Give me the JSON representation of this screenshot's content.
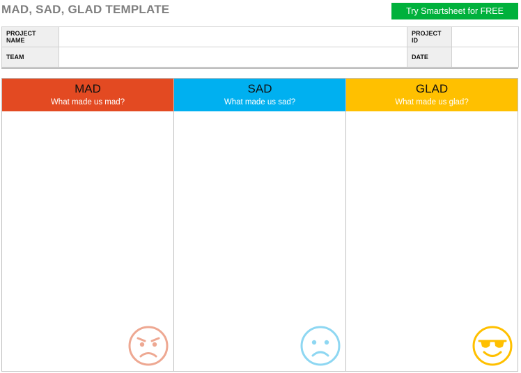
{
  "page": {
    "title": "MAD, SAD, GLAD TEMPLATE",
    "cta_label": "Try Smartsheet for FREE"
  },
  "info": {
    "project_name_label": "PROJECT NAME",
    "project_name_value": "",
    "project_id_label": "PROJECT ID",
    "project_id_value": "",
    "team_label": "TEAM",
    "team_value": "",
    "date_label": "DATE",
    "date_value": ""
  },
  "columns": [
    {
      "title": "MAD",
      "prompt": "What made us mad?",
      "color": "#e34a22",
      "icon": "angry-face-icon"
    },
    {
      "title": "SAD",
      "prompt": "What made us sad?",
      "color": "#00b0f0",
      "icon": "sad-face-icon"
    },
    {
      "title": "GLAD",
      "prompt": "What made us glad?",
      "color": "#ffc000",
      "icon": "sunglasses-face-icon"
    }
  ]
}
